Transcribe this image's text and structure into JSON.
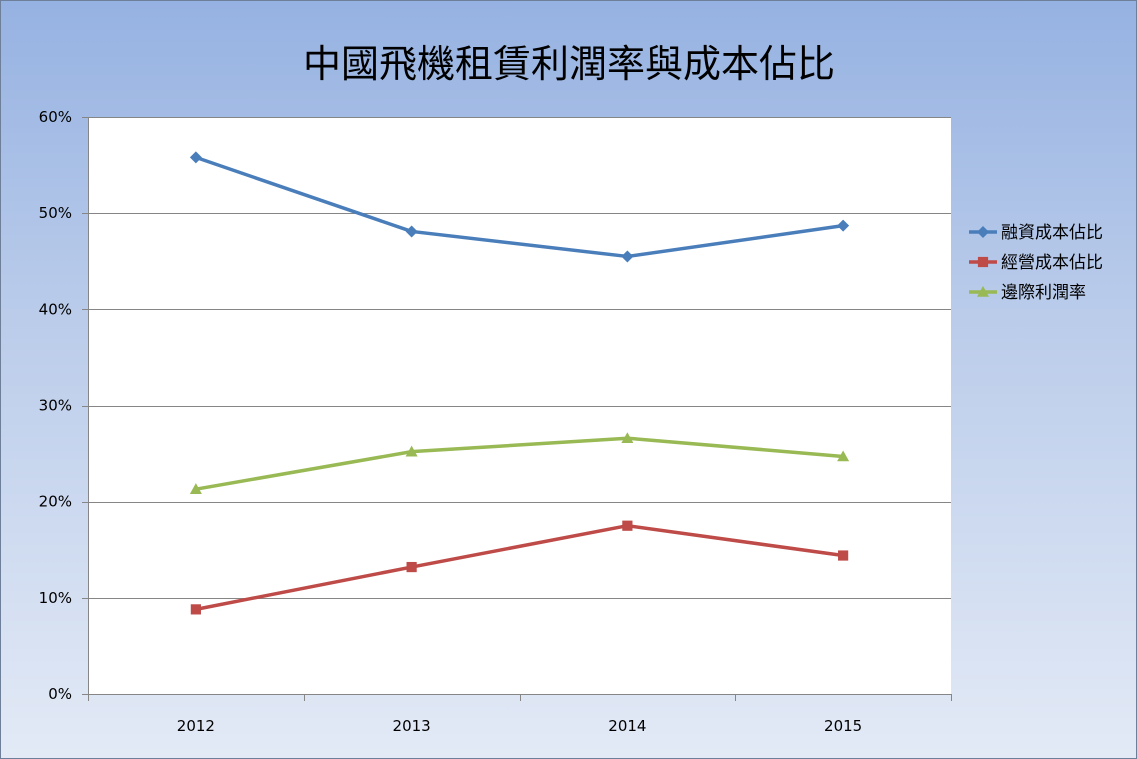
{
  "chart_data": {
    "type": "line",
    "title": "中國飛機租賃利潤率與成本佔比",
    "xlabel": "",
    "ylabel": "",
    "categories": [
      "2012",
      "2013",
      "2014",
      "2015"
    ],
    "ylim": [
      0,
      0.6
    ],
    "yticks": [
      0,
      0.1,
      0.2,
      0.3,
      0.4,
      0.5,
      0.6
    ],
    "ytick_labels": [
      "0%",
      "10%",
      "20%",
      "30%",
      "40%",
      "50%",
      "60%"
    ],
    "grid": true,
    "legend_position": "right",
    "series": [
      {
        "name": "融資成本佔比",
        "values": [
          0.558,
          0.481,
          0.455,
          0.487
        ],
        "color": "#4a7ebb",
        "marker": "diamond"
      },
      {
        "name": "經營成本佔比",
        "values": [
          0.088,
          0.132,
          0.175,
          0.144
        ],
        "color": "#be4b48",
        "marker": "square"
      },
      {
        "name": "邊際利潤率",
        "values": [
          0.213,
          0.252,
          0.266,
          0.247
        ],
        "color": "#98b954",
        "marker": "triangle"
      }
    ]
  }
}
